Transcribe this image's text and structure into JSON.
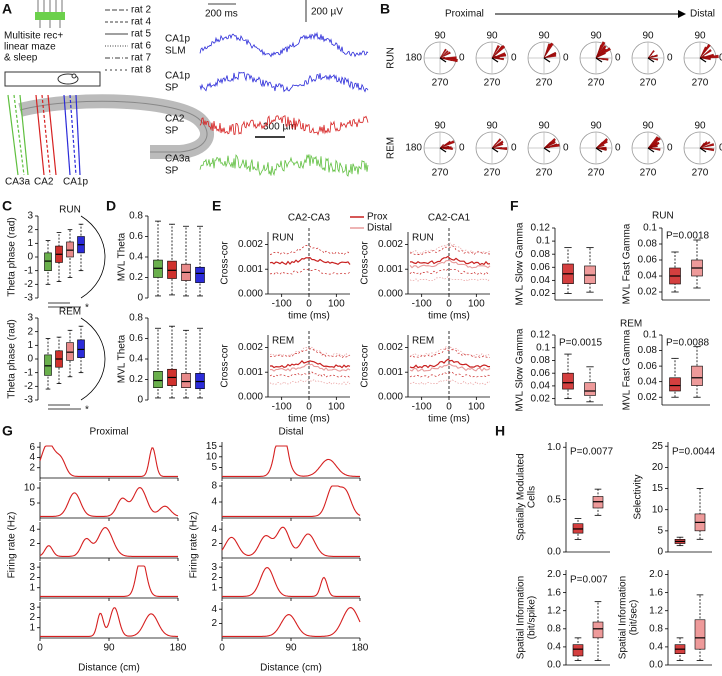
{
  "figure": {
    "panel_a": {
      "letter": "A",
      "setup": [
        "Multisite rec+",
        "linear maze",
        "& sleep"
      ],
      "rats": [
        "rat 2",
        "rat 4",
        "rat 5",
        "rat 6",
        "rat 7",
        "rat 8"
      ],
      "scale_bar": "300 µm",
      "regions": [
        {
          "name": "CA3a",
          "color": "#5fbf3f"
        },
        {
          "name": "CA2",
          "color": "#d62020"
        },
        {
          "name": "CA1p",
          "color": "#2b2bd9"
        }
      ],
      "traces": [
        {
          "label": [
            "CA1p",
            "SLM"
          ],
          "color": "#2b2bd9"
        },
        {
          "label": [
            "CA1p",
            "SP"
          ],
          "color": "#2b2bd9"
        },
        {
          "label": [
            "CA2",
            "SP"
          ],
          "color": "#d62020"
        },
        {
          "label": [
            "CA3a",
            "SP"
          ],
          "color": "#5fbf3f"
        }
      ],
      "time_scale": "200 ms",
      "voltage_scale": "200 µV"
    },
    "panel_b": {
      "letter": "B",
      "from": "Proximal",
      "to": "Distal",
      "rows": [
        "RUN",
        "REM"
      ],
      "angles": [
        90,
        180,
        0,
        270
      ]
    },
    "panel_c": {
      "letter": "C",
      "ylabel": "Theta phase (rad)",
      "ylim": [
        -3,
        3
      ],
      "yticks": [
        -3,
        -2,
        -1,
        0,
        1,
        2,
        3
      ],
      "significance": "*",
      "colors": [
        "#6ab04c",
        "#d0312d",
        "#e88a8a",
        "#2b2bd9"
      ],
      "groups": [
        {
          "condition": "RUN",
          "boxes": [
            {
              "whisker_low": -2,
              "q1": -1,
              "median": -0.3,
              "q3": 0.3,
              "whisker_high": 1.2
            },
            {
              "whisker_low": -1.8,
              "q1": -0.4,
              "median": 0.2,
              "q3": 0.8,
              "whisker_high": 1.8
            },
            {
              "whisker_low": -1.5,
              "q1": 0,
              "median": 0.5,
              "q3": 1.1,
              "whisker_high": 2
            },
            {
              "whisker_low": -1,
              "q1": 0.3,
              "median": 0.9,
              "q3": 1.5,
              "whisker_high": 2.4
            }
          ]
        },
        {
          "condition": "REM",
          "boxes": [
            {
              "whisker_low": -2.2,
              "q1": -1.2,
              "median": -0.5,
              "q3": 0.3,
              "whisker_high": 1.5
            },
            {
              "whisker_low": -1.8,
              "q1": -0.6,
              "median": 0,
              "q3": 0.6,
              "whisker_high": 1.6
            },
            {
              "whisker_low": -1.3,
              "q1": -0.1,
              "median": 0.5,
              "q3": 1.2,
              "whisker_high": 2.1
            },
            {
              "whisker_low": -1,
              "q1": 0.1,
              "median": 0.7,
              "q3": 1.4,
              "whisker_high": 2.4
            }
          ]
        }
      ]
    },
    "panel_d": {
      "letter": "D",
      "ylabel": "MVL Theta",
      "ylim": [
        0,
        0.8
      ],
      "yticks": [
        0,
        0.2,
        0.4,
        0.6,
        0.8
      ],
      "colors": [
        "#6ab04c",
        "#d0312d",
        "#e88a8a",
        "#2b2bd9"
      ],
      "groups": [
        {
          "boxes": [
            {
              "whisker_low": 0.02,
              "q1": 0.2,
              "median": 0.29,
              "q3": 0.37,
              "whisker_high": 0.75
            },
            {
              "whisker_low": 0.03,
              "q1": 0.19,
              "median": 0.27,
              "q3": 0.36,
              "whisker_high": 0.72
            },
            {
              "whisker_low": 0.02,
              "q1": 0.17,
              "median": 0.25,
              "q3": 0.33,
              "whisker_high": 0.7
            },
            {
              "whisker_low": 0.02,
              "q1": 0.15,
              "median": 0.24,
              "q3": 0.3,
              "whisker_high": 0.7
            }
          ]
        },
        {
          "boxes": [
            {
              "whisker_low": 0.02,
              "q1": 0.12,
              "median": 0.19,
              "q3": 0.28,
              "whisker_high": 0.7
            },
            {
              "whisker_low": 0.02,
              "q1": 0.14,
              "median": 0.22,
              "q3": 0.3,
              "whisker_high": 0.72
            },
            {
              "whisker_low": 0.02,
              "q1": 0.12,
              "median": 0.18,
              "q3": 0.26,
              "whisker_high": 0.68
            },
            {
              "whisker_low": 0.02,
              "q1": 0.11,
              "median": 0.18,
              "q3": 0.26,
              "whisker_high": 0.7
            }
          ]
        }
      ]
    },
    "panel_e": {
      "letter": "E",
      "titles": [
        "CA2-CA3",
        "CA2-CA1"
      ],
      "legend": [
        {
          "name": "Prox",
          "color": "#c8201f"
        },
        {
          "name": "Distal",
          "color": "#e89a9a"
        }
      ],
      "conditions": [
        "RUN",
        "REM"
      ],
      "ylabel": "Cross-cor",
      "xlabel": "time (ms)",
      "xlim": [
        -150,
        150
      ],
      "xticks": [
        -100,
        0,
        100
      ],
      "ylim": [
        0,
        0.0025
      ],
      "yticks": [
        {
          "value": 0,
          "label": "0.000"
        },
        {
          "value": 0.001,
          "label": "0.001"
        },
        {
          "value": 0.002,
          "label": "0.002"
        }
      ]
    },
    "panel_f": {
      "letter": "F",
      "conditions": [
        "RUN",
        "REM"
      ],
      "colors": [
        "#d43f3f",
        "#ee9a9a"
      ],
      "plots": [
        {
          "ylabel": "MVL Slow Gamma",
          "ylim": [
            0.01,
            0.12
          ],
          "yticks": [
            0.02,
            0.04,
            0.06,
            0.08,
            0.1,
            0.12
          ],
          "boxes": [
            {
              "whisker_low": 0.02,
              "q1": 0.035,
              "median": 0.05,
              "q3": 0.065,
              "whisker_high": 0.09
            },
            {
              "whisker_low": 0.022,
              "q1": 0.035,
              "median": 0.048,
              "q3": 0.062,
              "whisker_high": 0.09
            }
          ]
        },
        {
          "ylabel": "MVL Fast Gamma",
          "ylim": [
            0.01,
            0.1
          ],
          "yticks": [
            0.02,
            0.04,
            0.06,
            0.08,
            0.1
          ],
          "p": "P=0.0018",
          "boxes": [
            {
              "whisker_low": 0.02,
              "q1": 0.03,
              "median": 0.04,
              "q3": 0.05,
              "whisker_high": 0.07
            },
            {
              "whisker_low": 0.025,
              "q1": 0.04,
              "median": 0.05,
              "q3": 0.06,
              "whisker_high": 0.085
            }
          ]
        },
        {
          "ylabel": "MVL Slow Gamma",
          "ylim": [
            0.01,
            0.12
          ],
          "yticks": [
            0.02,
            0.04,
            0.06,
            0.08,
            0.1,
            0.12
          ],
          "p": "P=0.0015",
          "boxes": [
            {
              "whisker_low": 0.02,
              "q1": 0.035,
              "median": 0.045,
              "q3": 0.06,
              "whisker_high": 0.09
            },
            {
              "whisker_low": 0.015,
              "q1": 0.025,
              "median": 0.032,
              "q3": 0.045,
              "whisker_high": 0.07
            }
          ]
        },
        {
          "ylabel": "MVL Fast Gamma",
          "ylim": [
            0.01,
            0.1
          ],
          "yticks": [
            0.02,
            0.04,
            0.06,
            0.08,
            0.1
          ],
          "p": "P=0.0088",
          "boxes": [
            {
              "whisker_low": 0.02,
              "q1": 0.028,
              "median": 0.035,
              "q3": 0.045,
              "whisker_high": 0.07
            },
            {
              "whisker_low": 0.02,
              "q1": 0.035,
              "median": 0.045,
              "q3": 0.06,
              "whisker_high": 0.085
            }
          ]
        }
      ]
    },
    "panel_g": {
      "letter": "G",
      "columns": [
        "Proximal",
        "Distal"
      ],
      "ylabel": "Firing rate (Hz)",
      "xlabel": "Distance (cm)",
      "xlim": [
        0,
        180
      ],
      "xticks": [
        0,
        90,
        180
      ],
      "color": "#d62020",
      "rows": [
        [
          {
            "ylim": [
              0,
              7
            ],
            "yticks": [
              2,
              4,
              6
            ]
          },
          {
            "ylim": [
              0,
              12
            ],
            "yticks": [
              5,
              10
            ]
          },
          {
            "ylim": [
              0,
              5
            ],
            "yticks": [
              2,
              4
            ]
          },
          {
            "ylim": [
              0,
              3.5
            ],
            "yticks": [
              1,
              2,
              3
            ]
          },
          {
            "ylim": [
              0,
              3.5
            ],
            "yticks": [
              1,
              2,
              3
            ]
          }
        ],
        [
          {
            "ylim": [
              0,
              17
            ],
            "yticks": [
              5,
              10,
              15
            ]
          },
          {
            "ylim": [
              0,
              9
            ],
            "yticks": [
              4,
              8
            ]
          },
          {
            "ylim": [
              0,
              5
            ],
            "yticks": [
              2,
              4
            ]
          },
          {
            "ylim": [
              0,
              3.5
            ],
            "yticks": [
              1,
              2,
              3
            ]
          },
          {
            "ylim": [
              0,
              5
            ],
            "yticks": [
              2,
              4
            ]
          }
        ]
      ]
    },
    "panel_h": {
      "letter": "H",
      "colors": [
        "#d43f3f",
        "#ee9a9a"
      ],
      "plots": [
        {
          "ylabel": [
            "Spatially Modulated",
            "Cells"
          ],
          "ylim": [
            0,
            1.05
          ],
          "yticks": [
            {
              "value": 0,
              "label": "0.0"
            },
            0.5,
            {
              "value": 1,
              "label": "1.0"
            }
          ],
          "p": "P=0.0077",
          "boxes": [
            {
              "whisker_low": 0.12,
              "q1": 0.18,
              "median": 0.22,
              "q3": 0.27,
              "whisker_high": 0.32
            },
            {
              "whisker_low": 0.35,
              "q1": 0.42,
              "median": 0.48,
              "q3": 0.53,
              "whisker_high": 0.6
            }
          ]
        },
        {
          "ylabel": [
            "Selectivity"
          ],
          "ylim": [
            0,
            26
          ],
          "yticks": [
            0,
            5,
            10,
            15,
            20,
            25
          ],
          "p": "P=0.0044",
          "boxes": [
            {
              "whisker_low": 1.5,
              "q1": 2,
              "median": 2.5,
              "q3": 3,
              "whisker_high": 3.5
            },
            {
              "whisker_low": 3,
              "q1": 5,
              "median": 7,
              "q3": 9,
              "whisker_high": 15
            }
          ]
        },
        {
          "ylabel": [
            "Spatial Information",
            "(bit/spike)"
          ],
          "ylim": [
            0,
            2.1
          ],
          "yticks": [
            {
              "value": 0,
              "label": "0.0"
            },
            0.4,
            0.8,
            1.2,
            1.6,
            {
              "value": 2,
              "label": "2.0"
            }
          ],
          "p": "P=0.007",
          "boxes": [
            {
              "whisker_low": 0.1,
              "q1": 0.2,
              "median": 0.35,
              "q3": 0.45,
              "whisker_high": 0.6
            },
            {
              "whisker_low": 0.1,
              "q1": 0.6,
              "median": 0.8,
              "q3": 0.95,
              "whisker_high": 1.4
            }
          ]
        },
        {
          "ylabel": [
            "Spatial Information",
            "(bit/sec)"
          ],
          "ylim": [
            0,
            2.1
          ],
          "yticks": [
            {
              "value": 0,
              "label": "0.0"
            },
            0.4,
            0.8,
            1.2,
            1.6,
            {
              "value": 2,
              "label": "2.0"
            }
          ],
          "boxes": [
            {
              "whisker_low": 0.1,
              "q1": 0.25,
              "median": 0.35,
              "q3": 0.45,
              "whisker_high": 0.6
            },
            {
              "whisker_low": 0.1,
              "q1": 0.35,
              "median": 0.6,
              "q3": 1,
              "whisker_high": 1.55
            }
          ]
        }
      ]
    }
  }
}
